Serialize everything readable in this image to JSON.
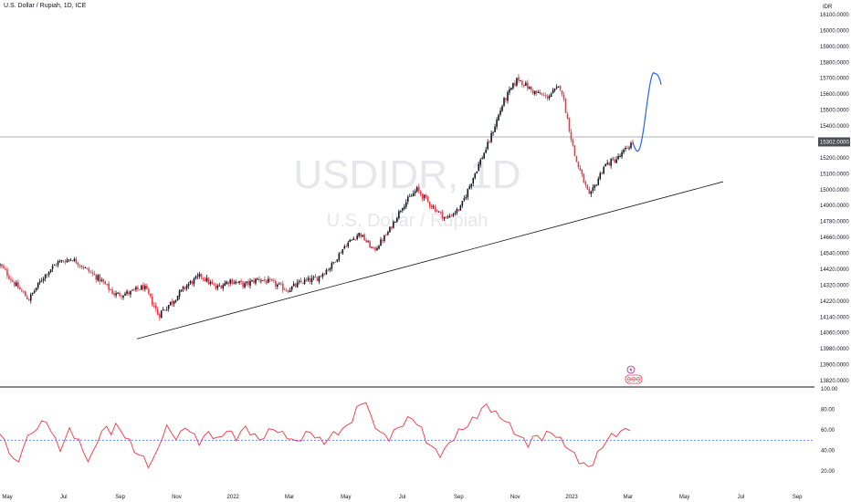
{
  "header": {
    "symbol_line": "U.S. Dollar / Rupiah, 1D, ICE"
  },
  "watermark": {
    "symbol": "USDIDR, 1D",
    "name": "U.S. Dollar / Rupiah"
  },
  "colors": {
    "up": "#131722",
    "down": "#f23645",
    "rsi": "#f23645",
    "rsi_midline": "#2962ff",
    "projection": "#2962ff",
    "trendline": "#131722",
    "price_line": "#9598a1",
    "price_tag": "#4a4e57"
  },
  "icons": {
    "event_top": "lightning-icon",
    "event_bottom": "us-flag-icon"
  },
  "chart_data": [
    {
      "type": "candlestick",
      "title": "U.S. Dollar / Rupiah, 1D, ICE",
      "currency_label": "IDR",
      "ylim": [
        13780,
        16140
      ],
      "yticks": [
        "16100.0000",
        "16000.0000",
        "15900.0000",
        "15800.0000",
        "15700.0000",
        "15600.0000",
        "15500.0000",
        "15400.0000",
        "15302.0000",
        "15200.0000",
        "15100.0000",
        "15000.0000",
        "14900.0000",
        "14780.0000",
        "14660.0000",
        "14540.0000",
        "14420.0000",
        "14320.0000",
        "14220.0000",
        "14140.0000",
        "14060.0000",
        "13980.0000",
        "13900.0000",
        "13820.0000"
      ],
      "ytick_values": [
        16100,
        16000,
        15900,
        15800,
        15700,
        15600,
        15500,
        15400,
        15302,
        15200,
        15100,
        15000,
        14900,
        14780,
        14660,
        14540,
        14420,
        14320,
        14220,
        14140,
        14060,
        13980,
        13900,
        13820
      ],
      "last_price": 15302,
      "last_price_label": "15302.0000",
      "x_axis_labels": [
        "May",
        "Jul",
        "Sep",
        "Nov",
        "2022",
        "Mar",
        "May",
        "Jul",
        "Sep",
        "Nov",
        "2023",
        "Mar",
        "May",
        "Jul",
        "Sep"
      ],
      "series_close": [
        {
          "x": "May 2021",
          "y": 14450
        },
        {
          "x": "Jun 2021",
          "y": 14330
        },
        {
          "x": "Jun 2021",
          "y": 14230
        },
        {
          "x": "Jun 2021",
          "y": 14370
        },
        {
          "x": "Jul 2021",
          "y": 14470
        },
        {
          "x": "Jul 2021",
          "y": 14500
        },
        {
          "x": "Aug 2021",
          "y": 14420
        },
        {
          "x": "Aug 2021",
          "y": 14350
        },
        {
          "x": "Sep 2021",
          "y": 14260
        },
        {
          "x": "Sep 2021",
          "y": 14270
        },
        {
          "x": "Oct 2021",
          "y": 14310
        },
        {
          "x": "Oct 2021",
          "y": 14150
        },
        {
          "x": "Nov 2021",
          "y": 14220
        },
        {
          "x": "Nov 2021",
          "y": 14320
        },
        {
          "x": "Dec 2021",
          "y": 14380
        },
        {
          "x": "Dec 2021",
          "y": 14300
        },
        {
          "x": "Jan 2022",
          "y": 14350
        },
        {
          "x": "Jan 2022",
          "y": 14320
        },
        {
          "x": "Feb 2022",
          "y": 14360
        },
        {
          "x": "Feb 2022",
          "y": 14330
        },
        {
          "x": "Mar 2022",
          "y": 14290
        },
        {
          "x": "Mar 2022",
          "y": 14340
        },
        {
          "x": "Apr 2022",
          "y": 14360
        },
        {
          "x": "Apr 2022",
          "y": 14440
        },
        {
          "x": "May 2022",
          "y": 14600
        },
        {
          "x": "May 2022",
          "y": 14690
        },
        {
          "x": "Jun 2022",
          "y": 14560
        },
        {
          "x": "Jun 2022",
          "y": 14700
        },
        {
          "x": "Jul 2022",
          "y": 14900
        },
        {
          "x": "Jul 2022",
          "y": 15000
        },
        {
          "x": "Aug 2022",
          "y": 14900
        },
        {
          "x": "Aug 2022",
          "y": 14800
        },
        {
          "x": "Sep 2022",
          "y": 14880
        },
        {
          "x": "Sep 2022",
          "y": 15100
        },
        {
          "x": "Oct 2022",
          "y": 15300
        },
        {
          "x": "Oct 2022",
          "y": 15550
        },
        {
          "x": "Nov 2022",
          "y": 15700
        },
        {
          "x": "Nov 2022",
          "y": 15620
        },
        {
          "x": "Dec 2022",
          "y": 15580
        },
        {
          "x": "Dec 2022",
          "y": 15650
        },
        {
          "x": "Jan 2023",
          "y": 15200
        },
        {
          "x": "Jan 2023",
          "y": 14950
        },
        {
          "x": "Feb 2023",
          "y": 15150
        },
        {
          "x": "Feb 2023",
          "y": 15200
        },
        {
          "x": "Mar 2023",
          "y": 15302
        }
      ],
      "projection": [
        {
          "x": "Mar 2023",
          "y": 15302
        },
        {
          "x": "Mar 2023",
          "y": 15210
        },
        {
          "x": "Apr 2023",
          "y": 15470
        },
        {
          "x": "Apr 2023",
          "y": 15730
        },
        {
          "x": "Apr 2023",
          "y": 15660
        }
      ],
      "trendline": [
        {
          "x": "Sep 2021",
          "y": 14030
        },
        {
          "x": "Jul 2023",
          "y": 15050
        }
      ]
    },
    {
      "type": "line",
      "title": "",
      "ylim": [
        10,
        100
      ],
      "yticks": [
        "100.00",
        "80.00",
        "60.00",
        "40.00",
        "20.00"
      ],
      "ytick_values": [
        100,
        80,
        60,
        40,
        20
      ],
      "midline": 50,
      "series": [
        {
          "name": "",
          "values": [
            56,
            48,
            40,
            30,
            28,
            45,
            52,
            58,
            62,
            66,
            70,
            58,
            50,
            42,
            48,
            62,
            54,
            48,
            40,
            30,
            36,
            50,
            58,
            62,
            58,
            64,
            60,
            54,
            48,
            40,
            36,
            32,
            26,
            30,
            40,
            54,
            62,
            58,
            52,
            56,
            64,
            58,
            54,
            48,
            52,
            58,
            54,
            50,
            55,
            60,
            56,
            52,
            58,
            62,
            58,
            54,
            50,
            54,
            58,
            62,
            58,
            56,
            54,
            50,
            48,
            52,
            56,
            58,
            54,
            50,
            48,
            52,
            56,
            58,
            60,
            64,
            70,
            80,
            86,
            88,
            72,
            64,
            58,
            54,
            52,
            58,
            62,
            66,
            70,
            72,
            66,
            60,
            50,
            44,
            40,
            36,
            40,
            48,
            52,
            58,
            62,
            64,
            70,
            74,
            80,
            84,
            80,
            76,
            72,
            70,
            64,
            58,
            54,
            50,
            46,
            52,
            54,
            52,
            56,
            58,
            54,
            50,
            46,
            40,
            36,
            30,
            26,
            24,
            28,
            36,
            44,
            50,
            54,
            56,
            58,
            60,
            62
          ]
        }
      ]
    }
  ]
}
